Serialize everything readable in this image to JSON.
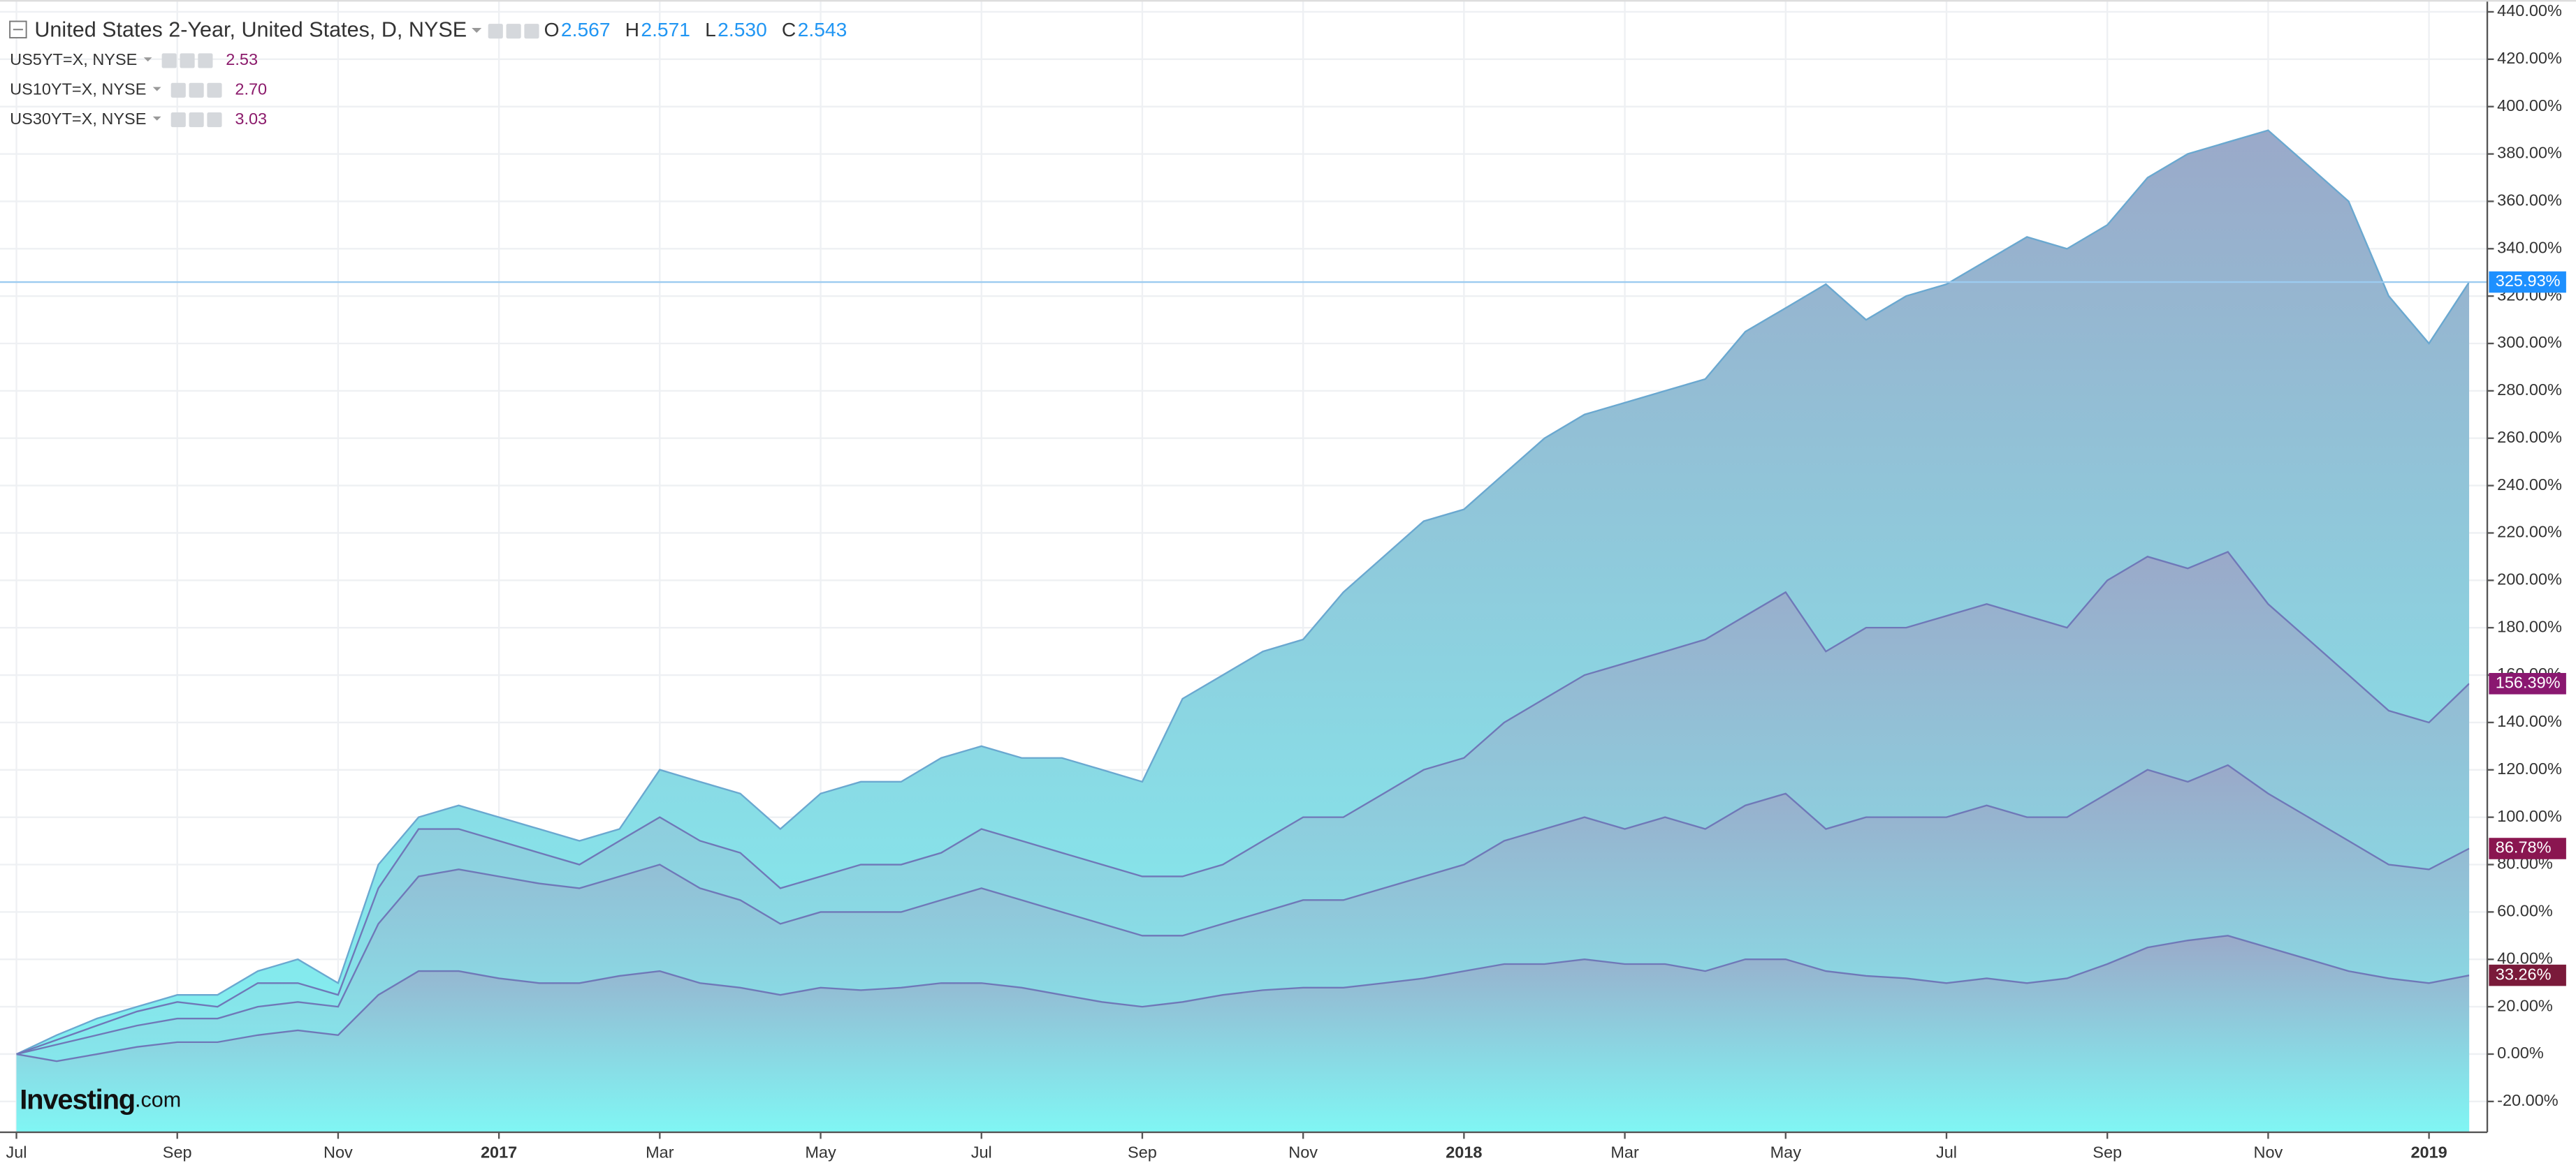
{
  "chart_data": {
    "type": "area",
    "title": "United States 2-Year, United States, D, NYSE",
    "ohlc": [
      {
        "label": "O",
        "value": "2.567"
      },
      {
        "label": "H",
        "value": "2.571"
      },
      {
        "label": "L",
        "value": "2.530"
      },
      {
        "label": "C",
        "value": "2.543"
      }
    ],
    "categories": [
      "Jul",
      null,
      null,
      null,
      "Sep",
      null,
      null,
      null,
      "Nov",
      null,
      null,
      null,
      "2017",
      null,
      null,
      null,
      "Mar",
      null,
      null,
      null,
      "May",
      null,
      null,
      null,
      "Jul",
      null,
      null,
      null,
      "Sep",
      null,
      null,
      null,
      "Nov",
      null,
      null,
      null,
      "2018",
      null,
      null,
      null,
      "Mar",
      null,
      null,
      null,
      "May",
      null,
      null,
      null,
      "Jul",
      null,
      null,
      null,
      "Sep",
      null,
      null,
      null,
      "Nov",
      null,
      null,
      null,
      "2019",
      null
    ],
    "series": [
      {
        "name": "United States 2-Year, United States, D, NYSE",
        "color": "#6aa8d0",
        "badge_color": "#1e90ff",
        "values": [
          0,
          8,
          15,
          20,
          25,
          25,
          35,
          40,
          30,
          80,
          100,
          105,
          100,
          95,
          90,
          95,
          120,
          115,
          110,
          95,
          110,
          115,
          115,
          125,
          130,
          125,
          125,
          120,
          115,
          150,
          160,
          170,
          175,
          195,
          210,
          225,
          230,
          245,
          260,
          270,
          275,
          280,
          285,
          305,
          315,
          325,
          310,
          320,
          325,
          335,
          345,
          340,
          350,
          370,
          380,
          385,
          390,
          375,
          360,
          320,
          300,
          325.93
        ],
        "value_labels": [
          null,
          null,
          null,
          null,
          null,
          null,
          null,
          null,
          null,
          null,
          null,
          null,
          null,
          null,
          null,
          null,
          null,
          null,
          null,
          null,
          null,
          null,
          null,
          null,
          null,
          null,
          null,
          null,
          null,
          null,
          null,
          null,
          null,
          null,
          null,
          null,
          null,
          null,
          null,
          null,
          null,
          null,
          null,
          null,
          null,
          null,
          null,
          null,
          null,
          null,
          null,
          null,
          null,
          null,
          null,
          null,
          null,
          null,
          null,
          null,
          null,
          "325.93%"
        ]
      },
      {
        "name": "US5YT=X, NYSE",
        "quote": "2.53",
        "color": "#6f78b8",
        "badge_color": "#8a1870",
        "values": [
          0,
          6,
          12,
          18,
          22,
          20,
          30,
          30,
          25,
          70,
          95,
          95,
          90,
          85,
          80,
          90,
          100,
          90,
          85,
          70,
          75,
          80,
          80,
          85,
          95,
          90,
          85,
          80,
          75,
          75,
          80,
          90,
          100,
          100,
          110,
          120,
          125,
          140,
          150,
          160,
          165,
          170,
          175,
          185,
          195,
          170,
          180,
          180,
          185,
          190,
          185,
          180,
          200,
          210,
          205,
          212,
          190,
          175,
          160,
          145,
          140,
          156.39
        ],
        "value_labels": [
          null,
          null,
          null,
          null,
          null,
          null,
          null,
          null,
          null,
          null,
          null,
          null,
          null,
          null,
          null,
          null,
          null,
          null,
          null,
          null,
          null,
          null,
          null,
          null,
          null,
          null,
          null,
          null,
          null,
          null,
          null,
          null,
          null,
          null,
          null,
          null,
          null,
          null,
          null,
          null,
          null,
          null,
          null,
          null,
          null,
          null,
          null,
          null,
          null,
          null,
          null,
          null,
          null,
          null,
          null,
          null,
          null,
          null,
          null,
          null,
          null,
          "156.39%"
        ]
      },
      {
        "name": "US10YT=X, NYSE",
        "quote": "2.70",
        "color": "#6f78b8",
        "badge_color": "#8a1650",
        "values": [
          0,
          4,
          8,
          12,
          15,
          15,
          20,
          22,
          20,
          55,
          75,
          78,
          75,
          72,
          70,
          75,
          80,
          70,
          65,
          55,
          60,
          60,
          60,
          65,
          70,
          65,
          60,
          55,
          50,
          50,
          55,
          60,
          65,
          65,
          70,
          75,
          80,
          90,
          95,
          100,
          95,
          100,
          95,
          105,
          110,
          95,
          100,
          100,
          100,
          105,
          100,
          100,
          110,
          120,
          115,
          122,
          110,
          100,
          90,
          80,
          78,
          86.78
        ],
        "value_labels": [
          null,
          null,
          null,
          null,
          null,
          null,
          null,
          null,
          null,
          null,
          null,
          null,
          null,
          null,
          null,
          null,
          null,
          null,
          null,
          null,
          null,
          null,
          null,
          null,
          null,
          null,
          null,
          null,
          null,
          null,
          null,
          null,
          null,
          null,
          null,
          null,
          null,
          null,
          null,
          null,
          null,
          null,
          null,
          null,
          null,
          null,
          null,
          null,
          null,
          null,
          null,
          null,
          null,
          null,
          null,
          null,
          null,
          null,
          null,
          null,
          null,
          "86.78%"
        ]
      },
      {
        "name": "US30YT=X, NYSE",
        "quote": "3.03",
        "color": "#6f78b8",
        "badge_color": "#7a1a3a",
        "values": [
          0,
          -3,
          0,
          3,
          5,
          5,
          8,
          10,
          8,
          25,
          35,
          35,
          32,
          30,
          30,
          33,
          35,
          30,
          28,
          25,
          28,
          27,
          28,
          30,
          30,
          28,
          25,
          22,
          20,
          22,
          25,
          27,
          28,
          28,
          30,
          32,
          35,
          38,
          38,
          40,
          38,
          38,
          35,
          40,
          40,
          35,
          33,
          32,
          30,
          32,
          30,
          32,
          38,
          45,
          48,
          50,
          45,
          40,
          35,
          32,
          30,
          33.26
        ],
        "value_labels": [
          null,
          null,
          null,
          null,
          null,
          null,
          null,
          null,
          null,
          null,
          null,
          null,
          null,
          null,
          null,
          null,
          null,
          null,
          null,
          null,
          null,
          null,
          null,
          null,
          null,
          null,
          null,
          null,
          null,
          null,
          null,
          null,
          null,
          null,
          null,
          null,
          null,
          null,
          null,
          null,
          null,
          null,
          null,
          null,
          null,
          null,
          null,
          null,
          null,
          null,
          null,
          null,
          null,
          null,
          null,
          null,
          null,
          null,
          null,
          null,
          null,
          "33.26%"
        ]
      }
    ],
    "ylim": [
      -33,
      445
    ],
    "yticks": [
      {
        "value": -20,
        "label": "-20.00%"
      },
      {
        "value": 0,
        "label": "0.00%"
      },
      {
        "value": 20,
        "label": "20.00%"
      },
      {
        "value": 40,
        "label": "40.00%"
      },
      {
        "value": 60,
        "label": "60.00%"
      },
      {
        "value": 80,
        "label": "80.00%"
      },
      {
        "value": 100,
        "label": "100.00%"
      },
      {
        "value": 120,
        "label": "120.00%"
      },
      {
        "value": 140,
        "label": "140.00%"
      },
      {
        "value": 160,
        "label": "160.00%"
      },
      {
        "value": 180,
        "label": "180.00%"
      },
      {
        "value": 200,
        "label": "200.00%"
      },
      {
        "value": 220,
        "label": "220.00%"
      },
      {
        "value": 240,
        "label": "240.00%"
      },
      {
        "value": 260,
        "label": "260.00%"
      },
      {
        "value": 280,
        "label": "280.00%"
      },
      {
        "value": 300,
        "label": "300.00%"
      },
      {
        "value": 320,
        "label": "320.00%"
      },
      {
        "value": 340,
        "label": "340.00%"
      },
      {
        "value": 360,
        "label": "360.00%"
      },
      {
        "value": 380,
        "label": "380.00%"
      },
      {
        "value": 400,
        "label": "400.00%"
      },
      {
        "value": 420,
        "label": "420.00%"
      },
      {
        "value": 440,
        "label": "440.00%"
      }
    ],
    "grid": true,
    "area_gradient": [
      "#9aa9c9",
      "#80f6f4"
    ],
    "watermark": [
      "Investing",
      ".com"
    ]
  }
}
